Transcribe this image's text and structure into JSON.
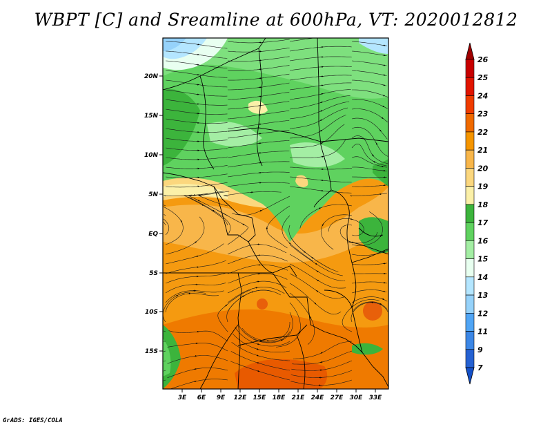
{
  "title": "WBPT [C] and Sreamline at 600hPa, VT: 2020012812",
  "credit": "GrADS: IGES/COLA",
  "map": {
    "lat_labels": [
      "20N",
      "15N",
      "10N",
      "5N",
      "EQ",
      "5S",
      "10S",
      "15S"
    ],
    "lon_labels": [
      "3E",
      "6E",
      "9E",
      "12E",
      "15E",
      "18E",
      "21E",
      "24E",
      "27E",
      "30E",
      "33E"
    ]
  },
  "colorbar": {
    "levels": [
      "26",
      "25",
      "24",
      "23",
      "22",
      "21",
      "20",
      "19",
      "18",
      "17",
      "16",
      "15",
      "14",
      "13",
      "12",
      "11",
      "9",
      "7"
    ],
    "colors": [
      "#a00000",
      "#c80000",
      "#e11400",
      "#f03c00",
      "#f06a00",
      "#f59500",
      "#f8b64a",
      "#fbd77e",
      "#fbf0a8",
      "#3cb43c",
      "#5fd25f",
      "#a4eea4",
      "#e8fff0",
      "#b4e6ff",
      "#96d2fa",
      "#50a5f5",
      "#3c87e6",
      "#2561d2",
      "#1450c8"
    ]
  }
}
